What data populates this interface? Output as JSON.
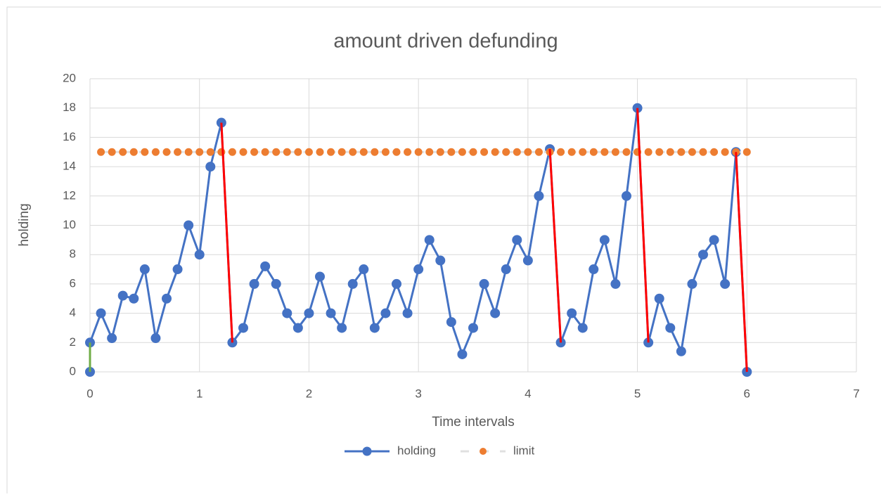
{
  "chart_data": {
    "type": "scatter_line",
    "title": "amount driven defunding",
    "x_label": "Time intervals",
    "y_label": "holding",
    "xlim": [
      0,
      7
    ],
    "xticks": [
      0,
      1,
      2,
      3,
      4,
      5,
      6,
      7
    ],
    "ylim": [
      0,
      20
    ],
    "yticks": [
      0,
      2,
      4,
      6,
      8,
      10,
      12,
      14,
      16,
      18,
      20
    ],
    "grid": true,
    "legend": "bottom",
    "series": [
      {
        "name": "holding",
        "color": "#4472c4",
        "line_color": "#4472c4",
        "marker": true,
        "x": [
          0,
          0,
          0.1,
          0.2,
          0.3,
          0.4,
          0.5,
          0.6,
          0.7,
          0.8,
          0.9,
          1.0,
          1.1,
          1.2,
          1.3,
          1.4,
          1.5,
          1.6,
          1.7,
          1.8,
          1.9,
          2.0,
          2.1,
          2.2,
          2.3,
          2.4,
          2.5,
          2.6,
          2.7,
          2.8,
          2.9,
          3.0,
          3.1,
          3.2,
          3.3,
          3.4,
          3.5,
          3.6,
          3.7,
          3.8,
          3.9,
          4.0,
          4.1,
          4.2,
          4.3,
          4.4,
          4.5,
          4.6,
          4.7,
          4.8,
          4.9,
          5.0,
          5.1,
          5.2,
          5.3,
          5.4,
          5.5,
          5.6,
          5.7,
          5.8,
          5.9,
          6.0
        ],
        "values": [
          0,
          2,
          4,
          2.3,
          5.2,
          5,
          7,
          2.3,
          5,
          7,
          10,
          8,
          14,
          17,
          2,
          3,
          6,
          7.2,
          6,
          4,
          3,
          4,
          6.5,
          4,
          3,
          6,
          7,
          3,
          4,
          6,
          4,
          7,
          9,
          7.6,
          3.4,
          1.2,
          3,
          6,
          4,
          7,
          9,
          7.6,
          12,
          15.2,
          2,
          4,
          3,
          7,
          9,
          6,
          12,
          18,
          2,
          5,
          3,
          1.4,
          6,
          8,
          9,
          6,
          15,
          0
        ]
      },
      {
        "name": "limit",
        "color": "#ed7d31",
        "line_color": "#e0e0e0",
        "dash": true,
        "marker": true,
        "x": [
          0.1,
          0.2,
          0.3,
          0.4,
          0.5,
          0.6,
          0.7,
          0.8,
          0.9,
          1.0,
          1.1,
          1.2,
          1.3,
          1.4,
          1.5,
          1.6,
          1.7,
          1.8,
          1.9,
          2.0,
          2.1,
          2.2,
          2.3,
          2.4,
          2.5,
          2.6,
          2.7,
          2.8,
          2.9,
          3.0,
          3.1,
          3.2,
          3.3,
          3.4,
          3.5,
          3.6,
          3.7,
          3.8,
          3.9,
          4.0,
          4.1,
          4.2,
          4.3,
          4.4,
          4.5,
          4.6,
          4.7,
          4.8,
          4.9,
          5.0,
          5.1,
          5.2,
          5.3,
          5.4,
          5.5,
          5.6,
          5.7,
          5.8,
          5.9,
          6.0
        ],
        "values": [
          15,
          15,
          15,
          15,
          15,
          15,
          15,
          15,
          15,
          15,
          15,
          15,
          15,
          15,
          15,
          15,
          15,
          15,
          15,
          15,
          15,
          15,
          15,
          15,
          15,
          15,
          15,
          15,
          15,
          15,
          15,
          15,
          15,
          15,
          15,
          15,
          15,
          15,
          15,
          15,
          15,
          15,
          15,
          15,
          15,
          15,
          15,
          15,
          15,
          15,
          15,
          15,
          15,
          15,
          15,
          15,
          15,
          15,
          15,
          15
        ]
      },
      {
        "line_color": "#70ad47",
        "x": [
          0,
          0
        ],
        "values": [
          0,
          2
        ]
      },
      {
        "line_color": "#ff0000",
        "x": [
          1.2,
          1.3
        ],
        "values": [
          17,
          2
        ]
      },
      {
        "line_color": "#ff0000",
        "x": [
          4.2,
          4.3
        ],
        "values": [
          15.2,
          2
        ]
      },
      {
        "line_color": "#ff0000",
        "x": [
          5.0,
          5.1
        ],
        "values": [
          18,
          2
        ]
      },
      {
        "line_color": "#ff0000",
        "x": [
          5.9,
          6.0
        ],
        "values": [
          15,
          0
        ]
      }
    ]
  }
}
